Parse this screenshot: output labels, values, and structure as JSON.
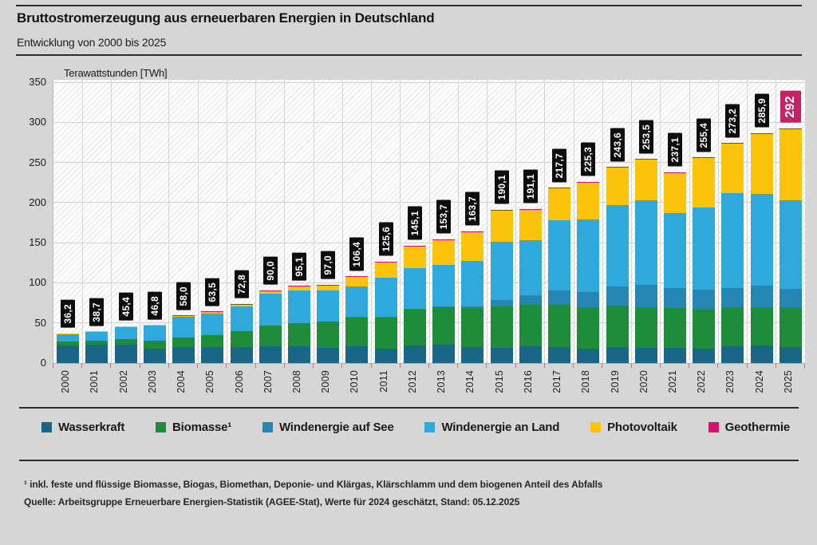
{
  "header": {
    "title": "Bruttostromerzeugung aus erneuerbaren Energien in Deutschland",
    "subtitle": "Entwicklung von 2000 bis 2025"
  },
  "chart_data": {
    "type": "bar",
    "stacked": true,
    "unit_label": "Terawattstunden [TWh]",
    "years": [
      "2000",
      "2001",
      "2002",
      "2003",
      "2004",
      "2005",
      "2006",
      "2007",
      "2008",
      "2009",
      "2010",
      "2011",
      "2012",
      "2013",
      "2014",
      "2015",
      "2016",
      "2017",
      "2018",
      "2019",
      "2020",
      "2021",
      "2022",
      "2023",
      "2024",
      "2025"
    ],
    "totals": [
      36.2,
      38.7,
      45.4,
      46.8,
      58.0,
      63.5,
      72.8,
      90.0,
      95.1,
      97.0,
      106.4,
      125.6,
      145.1,
      153.7,
      163.7,
      190.1,
      191.1,
      217.7,
      225.3,
      243.6,
      253.5,
      237.1,
      255.4,
      273.2,
      285.9,
      292
    ],
    "totals_display": [
      "36,2",
      "38,7",
      "45,4",
      "46,8",
      "58,0",
      "63,5",
      "72,8",
      "90,0",
      "95,1",
      "97,0",
      "106,4",
      "125,6",
      "145,1",
      "153,7",
      "163,7",
      "190,1",
      "191,1",
      "217,7",
      "225,3",
      "243,6",
      "253,5",
      "237,1",
      "255,4",
      "273,2",
      "285,9",
      "292"
    ],
    "series": [
      {
        "name": "Wasserkraft",
        "color": "#1a6687",
        "values": [
          21.7,
          22.7,
          23.1,
          17.7,
          20.0,
          19.6,
          20.0,
          21.2,
          20.4,
          19.0,
          21.0,
          17.7,
          22.1,
          23.0,
          19.6,
          19.0,
          20.5,
          20.2,
          18.0,
          20.2,
          18.7,
          19.4,
          17.5,
          20.5,
          21.5,
          20.0
        ]
      },
      {
        "name": "Biomasse¹",
        "color": "#1f8c3a",
        "values": [
          4.9,
          5.4,
          6.3,
          9.9,
          11.8,
          15.3,
          19.8,
          25.9,
          29.6,
          32.7,
          35.5,
          38.6,
          44.8,
          46.9,
          49.2,
          51.6,
          52.1,
          52.2,
          51.3,
          51.0,
          51.0,
          49.5,
          49.3,
          49.2,
          48.5,
          50.0
        ]
      },
      {
        "name": "Windenergie auf See",
        "color": "#2486b2",
        "values": [
          0,
          0,
          0,
          0,
          0,
          0,
          0,
          0,
          0,
          0,
          0.2,
          0.6,
          0.7,
          0.9,
          1.4,
          8.3,
          12.1,
          17.7,
          19.5,
          24.7,
          27.3,
          24.4,
          25.1,
          23.5,
          26.0,
          22.5
        ]
      },
      {
        "name": "Windenergie an Land",
        "color": "#2fa8dc",
        "values": [
          9.5,
          10.5,
          15.8,
          18.9,
          25.5,
          27.2,
          30.7,
          39.7,
          40.6,
          38.6,
          37.8,
          48.9,
          50.7,
          51.7,
          57.1,
          72.3,
          68.1,
          88.0,
          90.5,
          101.1,
          105.7,
          93.6,
          102.5,
          118.7,
          114.5,
          110.0
        ]
      },
      {
        "name": "Photovoltaik",
        "color": "#fcc30b",
        "values": [
          0.1,
          0.1,
          0.2,
          0.3,
          0.6,
          1.3,
          2.2,
          3.1,
          4.4,
          6.6,
          11.7,
          19.6,
          26.6,
          31.0,
          36.2,
          38.7,
          38.1,
          39.4,
          45.8,
          46.4,
          50.6,
          50.0,
          60.8,
          61.1,
          75.2,
          89.3
        ]
      },
      {
        "name": "Geothermie",
        "color": "#d0176b",
        "values": [
          0,
          0,
          0,
          0,
          0.1,
          0.1,
          0.1,
          0.1,
          0.1,
          0.1,
          0.2,
          0.2,
          0.2,
          0.2,
          0.2,
          0.2,
          0.2,
          0.2,
          0.2,
          0.2,
          0.2,
          0.2,
          0.2,
          0.2,
          0.2,
          0.2
        ]
      }
    ],
    "yticks": [
      0,
      50,
      100,
      150,
      200,
      250,
      300,
      350
    ],
    "ylim": [
      0,
      350
    ],
    "grid": true,
    "legend_position": "bottom",
    "highlight_year": "2025",
    "highlight_color": "#c42368",
    "value_label_box_color": "#0d0d0d"
  },
  "footnotes": {
    "note1": "¹ inkl. feste und flüssige Biomasse, Biogas, Biomethan, Deponie- und Klärgas, Klärschlamm und dem biogenen Anteil des Abfalls",
    "source": "Quelle: Arbeitsgruppe Erneuerbare Energien-Statistik (AGEE-Stat), Werte für 2024 geschätzt, Stand: 05.12.2025"
  }
}
